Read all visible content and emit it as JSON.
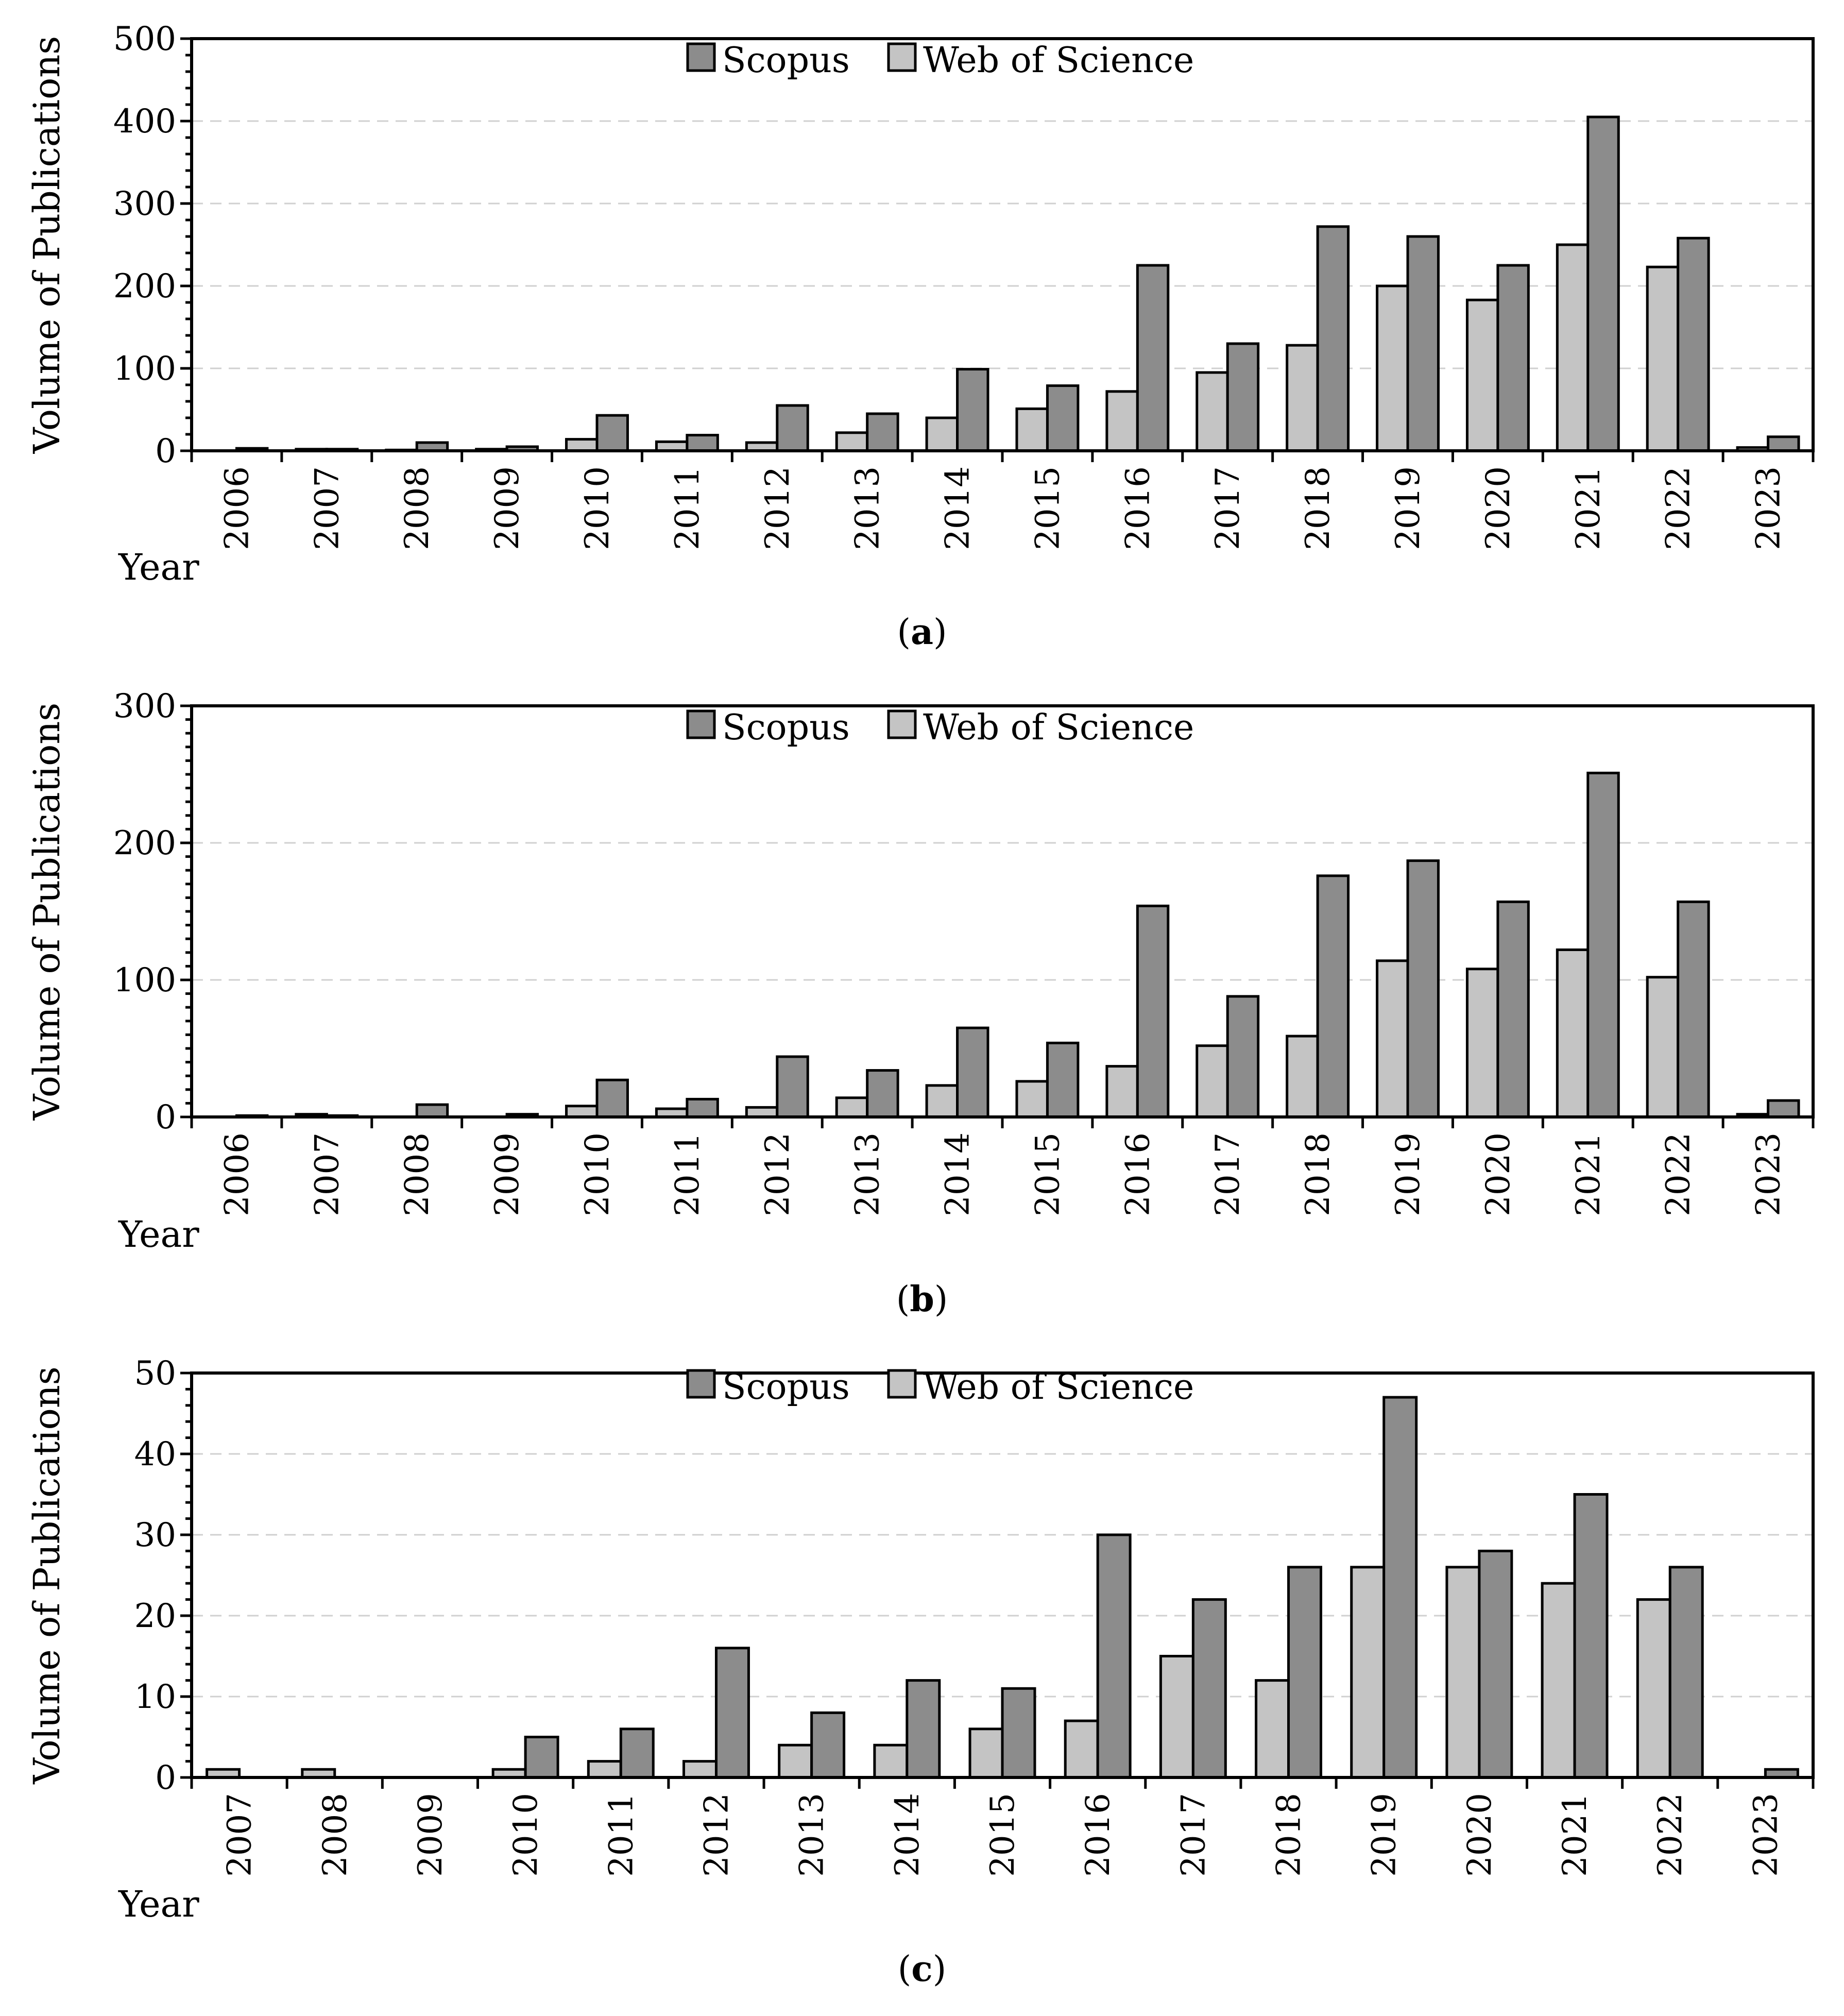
{
  "figure": {
    "legend": {
      "scopus": "Scopus",
      "wos": "Web of Science"
    },
    "colors": {
      "scopus": "#8c8c8c",
      "wos": "#c4c4c4",
      "axis": "#000000",
      "grid": "#d0d0d0"
    }
  },
  "chart_data": [
    {
      "id": "a",
      "type": "bar",
      "caption_letter": "a",
      "ylabel": "Volume of Publications",
      "xlabel": "Year",
      "ylim": [
        0,
        500
      ],
      "ymajor": [
        0,
        100,
        200,
        300,
        400,
        500
      ],
      "yminor_step": 20,
      "categories": [
        "2006",
        "2007",
        "2008",
        "2009",
        "2010",
        "2011",
        "2012",
        "2013",
        "2014",
        "2015",
        "2016",
        "2017",
        "2018",
        "2019",
        "2020",
        "2021",
        "2022",
        "2023"
      ],
      "series": [
        {
          "name": "Web of Science",
          "values": [
            0,
            2,
            1,
            2,
            14,
            11,
            10,
            22,
            40,
            51,
            72,
            95,
            128,
            200,
            183,
            250,
            223,
            4
          ]
        },
        {
          "name": "Scopus",
          "values": [
            3,
            2,
            10,
            5,
            43,
            19,
            55,
            45,
            99,
            79,
            225,
            130,
            272,
            260,
            225,
            405,
            258,
            17
          ]
        }
      ]
    },
    {
      "id": "b",
      "type": "bar",
      "caption_letter": "b",
      "ylabel": "Volume of Publications",
      "xlabel": "Year",
      "ylim": [
        0,
        300
      ],
      "ymajor": [
        0,
        100,
        200,
        300
      ],
      "yminor_step": 10,
      "categories": [
        "2006",
        "2007",
        "2008",
        "2009",
        "2010",
        "2011",
        "2012",
        "2013",
        "2014",
        "2015",
        "2016",
        "2017",
        "2018",
        "2019",
        "2020",
        "2021",
        "2022",
        "2023"
      ],
      "series": [
        {
          "name": "Web of Science",
          "values": [
            0,
            2,
            0,
            0,
            8,
            6,
            7,
            14,
            23,
            26,
            37,
            52,
            59,
            114,
            108,
            122,
            102,
            2
          ]
        },
        {
          "name": "Scopus",
          "values": [
            1,
            1,
            9,
            2,
            27,
            13,
            44,
            34,
            65,
            54,
            154,
            88,
            176,
            187,
            157,
            251,
            157,
            12
          ]
        }
      ]
    },
    {
      "id": "c",
      "type": "bar",
      "caption_letter": "c",
      "ylabel": "Volume of Publications",
      "xlabel": "Year",
      "ylim": [
        0,
        50
      ],
      "ymajor": [
        0,
        10,
        20,
        30,
        40,
        50
      ],
      "yminor_step": 2,
      "categories": [
        "2007",
        "2008",
        "2009",
        "2010",
        "2011",
        "2012",
        "2013",
        "2014",
        "2015",
        "2016",
        "2017",
        "2018",
        "2019",
        "2020",
        "2021",
        "2022",
        "2023"
      ],
      "series": [
        {
          "name": "Web of Science",
          "values": [
            1,
            1,
            0,
            1,
            2,
            2,
            4,
            4,
            6,
            7,
            15,
            12,
            26,
            26,
            24,
            22,
            0
          ]
        },
        {
          "name": "Scopus",
          "values": [
            0,
            0,
            0,
            5,
            6,
            16,
            8,
            12,
            11,
            30,
            22,
            26,
            47,
            28,
            35,
            26,
            1
          ]
        }
      ]
    }
  ]
}
